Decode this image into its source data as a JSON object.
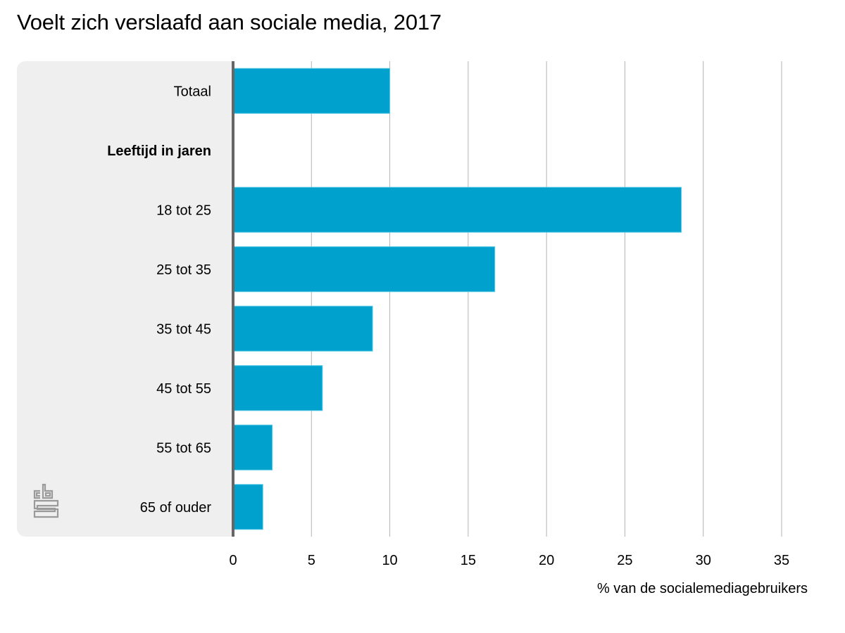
{
  "header": {
    "title": "Voelt zich verslaafd aan sociale media, 2017"
  },
  "logo": {
    "name": "cbs-logo"
  },
  "colors": {
    "bar": "#00a1cd",
    "bar_edge": "#5ccbe8",
    "panel": "#efefef",
    "axis": "#666666",
    "grid": "#b3b3b3"
  },
  "chart_data": {
    "type": "bar",
    "orientation": "horizontal",
    "title": "Voelt zich verslaafd aan sociale media, 2017",
    "xlabel": "% van de socialemediagebruikers",
    "ylabel": "",
    "xlim": [
      0,
      35
    ],
    "xticks": [
      0,
      5,
      10,
      15,
      20,
      25,
      30,
      35
    ],
    "grid": true,
    "legend": "none",
    "categories": [
      {
        "label": "Totaal",
        "value": 10.0,
        "header": false
      },
      {
        "label": "Leeftijd in jaren",
        "value": null,
        "header": true
      },
      {
        "label": "18 tot 25",
        "value": 28.6,
        "header": false
      },
      {
        "label": "25 tot 35",
        "value": 16.7,
        "header": false
      },
      {
        "label": "35 tot 45",
        "value": 8.9,
        "header": false
      },
      {
        "label": "45 tot 55",
        "value": 5.7,
        "header": false
      },
      {
        "label": "55 tot 65",
        "value": 2.5,
        "header": false
      },
      {
        "label": "65 of ouder",
        "value": 1.9,
        "header": false
      }
    ]
  }
}
